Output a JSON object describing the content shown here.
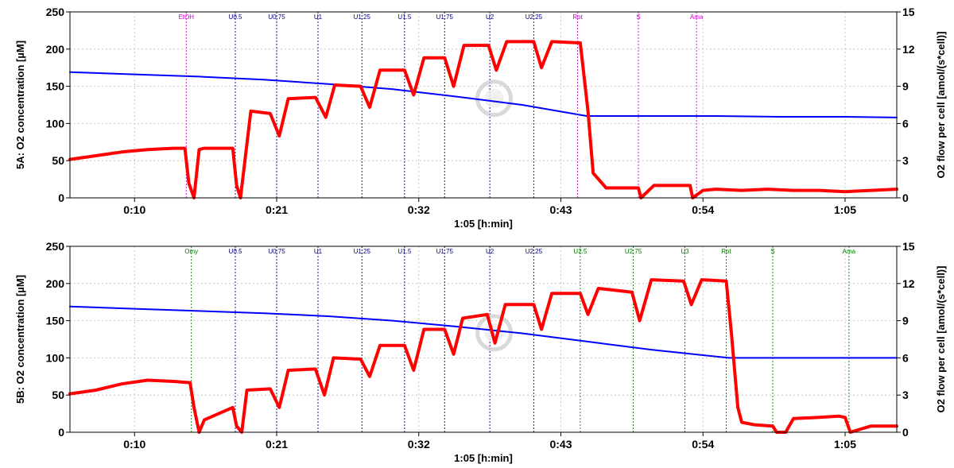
{
  "chart_data": [
    {
      "type": "line",
      "panel": "5A",
      "xlabel": "1:05 [h:min]",
      "ylabel_left": "5A: O2 concentration [µM]",
      "ylabel_right": "O2 flow per cell [amol/(s*cell)]",
      "x_unit": "minutes",
      "xlim": [
        5,
        69
      ],
      "ylim_left": [
        0,
        250
      ],
      "ylim_right": [
        0,
        15
      ],
      "x_ticks": [
        10,
        21,
        32,
        43,
        54,
        65
      ],
      "x_tick_labels": [
        "0:10",
        "0:21",
        "0:32",
        "0:43",
        "0:54",
        "1:05"
      ],
      "y_left_ticks": [
        0,
        50,
        100,
        150,
        200,
        250
      ],
      "y_left_tick_labels": [
        "0",
        "50",
        "100",
        "150",
        "200",
        "250"
      ],
      "y_right_ticks": [
        0,
        3,
        6,
        9,
        12,
        15
      ],
      "y_right_tick_labels": [
        "0",
        "3",
        "6",
        "9",
        "12",
        "15"
      ],
      "grid": true,
      "events": [
        {
          "label": "EtOH",
          "x": 14.0,
          "color": "#d000d0"
        },
        {
          "label": "U0.5",
          "x": 17.8,
          "color": "#000080"
        },
        {
          "label": "U0.75",
          "x": 21.0,
          "color": "#000080"
        },
        {
          "label": "U1",
          "x": 24.2,
          "color": "#000080"
        },
        {
          "label": "U1.25",
          "x": 27.6,
          "color": "#000080"
        },
        {
          "label": "U1.5",
          "x": 30.9,
          "color": "#000080"
        },
        {
          "label": "U1.75",
          "x": 34.0,
          "color": "#000080"
        },
        {
          "label": "U2",
          "x": 37.5,
          "color": "#000080"
        },
        {
          "label": "U2.25",
          "x": 40.9,
          "color": "#000080"
        },
        {
          "label": "Rot",
          "x": 44.3,
          "color": "#d000d0"
        },
        {
          "label": "S",
          "x": 49.0,
          "color": "#d000d0"
        },
        {
          "label": "Ama",
          "x": 53.5,
          "color": "#d000d0"
        }
      ],
      "series": [
        {
          "axis": "left",
          "color": "#0000ff",
          "x": [
            5,
            10,
            15,
            20,
            25,
            30,
            35,
            40,
            45,
            50,
            55,
            60,
            65,
            69
          ],
          "y": [
            169,
            166,
            163,
            159,
            153,
            146,
            136,
            125,
            110,
            110,
            110,
            109,
            109,
            108
          ]
        },
        {
          "axis": "right",
          "color": "#ff0000",
          "x": [
            5,
            7,
            9,
            11,
            13,
            13.9,
            14.2,
            14.6,
            15.0,
            15.4,
            17.6,
            17.9,
            18.2,
            19.0,
            20.5,
            21.2,
            21.9,
            24.0,
            24.8,
            25.5,
            27.5,
            28.2,
            29.0,
            30.9,
            31.6,
            32.4,
            34.0,
            34.7,
            35.5,
            37.4,
            38.0,
            38.8,
            40.9,
            41.5,
            42.3,
            44.5,
            45.1,
            45.5,
            46.5,
            49.0,
            49.2,
            50.2,
            53.0,
            53.2,
            54.0,
            55.0,
            57.0,
            59.0,
            61.0,
            63.0,
            65.0,
            67.0,
            69.0
          ],
          "y": [
            3.1,
            3.4,
            3.7,
            3.9,
            4.0,
            4.0,
            1.2,
            0,
            3.9,
            4.0,
            4.0,
            1.0,
            0,
            7.0,
            6.8,
            5.0,
            8.0,
            8.1,
            6.5,
            9.1,
            9.0,
            7.3,
            10.3,
            10.3,
            8.3,
            11.3,
            11.3,
            9.0,
            12.3,
            12.3,
            10.3,
            12.6,
            12.6,
            10.5,
            12.6,
            12.5,
            7.0,
            2.0,
            0.8,
            0.8,
            0,
            1.0,
            1.0,
            0,
            0.6,
            0.7,
            0.6,
            0.7,
            0.6,
            0.6,
            0.5,
            0.6,
            0.7
          ]
        }
      ]
    },
    {
      "type": "line",
      "panel": "5B",
      "xlabel": "1:05 [h:min]",
      "ylabel_left": "5B: O2 concentration [µM]",
      "ylabel_right": "O2 flow per cell [amol/(s*cell)]",
      "x_unit": "minutes",
      "xlim": [
        5,
        69
      ],
      "ylim_left": [
        0,
        250
      ],
      "ylim_right": [
        0,
        15
      ],
      "x_ticks": [
        10,
        21,
        32,
        43,
        54,
        65
      ],
      "x_tick_labels": [
        "0:10",
        "0:21",
        "0:32",
        "0:43",
        "0:54",
        "1:05"
      ],
      "y_left_ticks": [
        0,
        50,
        100,
        150,
        200,
        250
      ],
      "y_left_tick_labels": [
        "0",
        "50",
        "100",
        "150",
        "200",
        "250"
      ],
      "y_right_ticks": [
        0,
        3,
        6,
        9,
        12,
        15
      ],
      "y_right_tick_labels": [
        "0",
        "3",
        "6",
        "9",
        "12",
        "15"
      ],
      "grid": true,
      "events": [
        {
          "label": "Omy",
          "x": 14.4,
          "color": "#008000"
        },
        {
          "label": "U0.5",
          "x": 17.8,
          "color": "#000080"
        },
        {
          "label": "U0.75",
          "x": 21.0,
          "color": "#000080"
        },
        {
          "label": "U1",
          "x": 24.2,
          "color": "#000080"
        },
        {
          "label": "U1.25",
          "x": 27.6,
          "color": "#000080"
        },
        {
          "label": "U1.5",
          "x": 30.9,
          "color": "#000080"
        },
        {
          "label": "U1.75",
          "x": 34.0,
          "color": "#000080"
        },
        {
          "label": "U2",
          "x": 37.5,
          "color": "#000080"
        },
        {
          "label": "U2.25",
          "x": 40.9,
          "color": "#000080"
        },
        {
          "label": "U2.5",
          "x": 44.5,
          "color": "#008000"
        },
        {
          "label": "U2.75",
          "x": 48.6,
          "color": "#008000"
        },
        {
          "label": "U3",
          "x": 52.6,
          "color": "#008000"
        },
        {
          "label": "Rot",
          "x": 55.8,
          "color": "#008000"
        },
        {
          "label": "S",
          "x": 59.4,
          "color": "#008000"
        },
        {
          "label": "Ama",
          "x": 65.3,
          "color": "#008000"
        }
      ],
      "series": [
        {
          "axis": "left",
          "color": "#0000ff",
          "x": [
            5,
            10,
            15,
            20,
            25,
            30,
            35,
            40,
            45,
            50,
            56,
            60,
            65,
            69
          ],
          "y": [
            169,
            166,
            163,
            160,
            156,
            150,
            142,
            133,
            122,
            111,
            100,
            100,
            100,
            100
          ]
        },
        {
          "axis": "right",
          "color": "#ff0000",
          "x": [
            5,
            7,
            9,
            11,
            13,
            14.3,
            14.6,
            15.0,
            15.4,
            17.6,
            17.9,
            18.3,
            18.7,
            20.5,
            21.2,
            21.9,
            24.0,
            24.7,
            25.4,
            27.5,
            28.2,
            29.0,
            30.9,
            31.6,
            32.4,
            34.0,
            34.7,
            35.4,
            37.3,
            37.9,
            38.7,
            40.9,
            41.5,
            42.3,
            44.5,
            45.1,
            45.9,
            48.5,
            49.1,
            50.0,
            52.5,
            53.1,
            53.9,
            55.8,
            56.2,
            56.7,
            57.0,
            58.0,
            59.4,
            59.7,
            60.4,
            61.0,
            63.0,
            64.5,
            65.0,
            65.4,
            67.0,
            69.0
          ],
          "y": [
            3.1,
            3.4,
            3.9,
            4.2,
            4.1,
            4.0,
            2.0,
            0,
            1.0,
            2.0,
            0.5,
            0,
            3.4,
            3.5,
            2.0,
            5.0,
            5.1,
            3.0,
            6.0,
            5.9,
            4.5,
            7.0,
            7.0,
            5.0,
            8.3,
            8.3,
            6.3,
            9.2,
            9.5,
            7.2,
            10.3,
            10.3,
            8.3,
            11.2,
            11.2,
            9.5,
            11.6,
            11.3,
            9.0,
            12.3,
            12.2,
            10.3,
            12.3,
            12.2,
            8.0,
            2.0,
            0.8,
            0.6,
            0.5,
            0,
            0,
            1.1,
            1.2,
            1.3,
            1.2,
            0,
            0.5,
            0.5
          ]
        }
      ]
    }
  ]
}
